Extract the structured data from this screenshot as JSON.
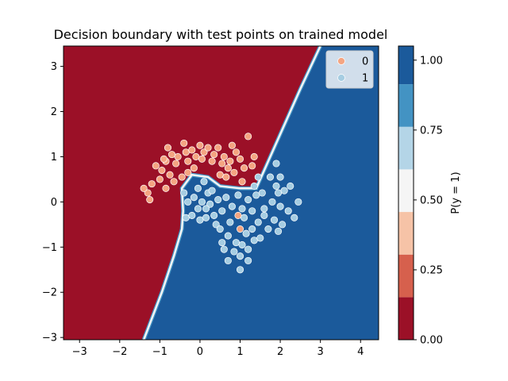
{
  "chart_data": {
    "type": "scatter",
    "title": "Decision boundary with test points on trained model",
    "xlim": [
      -3.4,
      4.45
    ],
    "ylim": [
      -3.05,
      3.45
    ],
    "xticks": [
      -3,
      -2,
      -1,
      0,
      1,
      2,
      3,
      4
    ],
    "yticks": [
      -3,
      -2,
      -1,
      0,
      1,
      2,
      3
    ],
    "tick_labels_x": [
      "−3",
      "−2",
      "−1",
      "0",
      "1",
      "2",
      "3",
      "4"
    ],
    "tick_labels_y": [
      "−3",
      "−2",
      "−1",
      "0",
      "1",
      "2",
      "3"
    ],
    "colorbar": {
      "label": "P(y = 1)",
      "levels": [
        0.0,
        0.125,
        0.25,
        0.375,
        0.5,
        0.625,
        0.75,
        0.875,
        1.0
      ],
      "tick_values": [
        0.0,
        0.25,
        0.5,
        0.75,
        1.0
      ],
      "tick_labels": [
        "0.00",
        "0.25",
        "0.50",
        "0.75",
        "1.00"
      ],
      "colors": [
        "#9b1027",
        "#d6604d",
        "#f6c3a7",
        "#f5f5f5",
        "#b4d5e7",
        "#4393c3",
        "#1b5a9b"
      ]
    },
    "region_colors": {
      "class0": "#9b1027",
      "class1": "#1b5a9b",
      "boundary": "#f5f5f5"
    },
    "boundary_path": [
      [
        3.0,
        3.45
      ],
      [
        2.5,
        2.5
      ],
      [
        2.0,
        1.5
      ],
      [
        1.65,
        0.8
      ],
      [
        1.4,
        0.3
      ],
      [
        1.0,
        0.3
      ],
      [
        0.5,
        0.35
      ],
      [
        0.2,
        0.55
      ],
      [
        -0.2,
        0.6
      ],
      [
        -0.45,
        0.3
      ],
      [
        -0.42,
        -0.2
      ],
      [
        -0.45,
        -0.6
      ],
      [
        -0.65,
        -1.2
      ],
      [
        -0.95,
        -2.0
      ],
      [
        -1.4,
        -3.05
      ]
    ],
    "legend": {
      "position": "top-right",
      "entries": [
        "0",
        "1"
      ]
    },
    "series": [
      {
        "name": "0",
        "color": "#f4a582",
        "points": [
          [
            -1.3,
            0.2
          ],
          [
            -1.2,
            0.4
          ],
          [
            -1.0,
            0.5
          ],
          [
            -0.95,
            0.7
          ],
          [
            -0.85,
            0.9
          ],
          [
            -0.8,
            1.2
          ],
          [
            -0.7,
            1.05
          ],
          [
            -0.6,
            0.85
          ],
          [
            -0.55,
            1.0
          ],
          [
            -0.4,
            1.3
          ],
          [
            -0.35,
            1.1
          ],
          [
            -0.3,
            0.9
          ],
          [
            -0.2,
            1.15
          ],
          [
            -0.1,
            1.0
          ],
          [
            0.0,
            1.25
          ],
          [
            0.05,
            0.95
          ],
          [
            0.1,
            1.1
          ],
          [
            0.2,
            1.2
          ],
          [
            0.3,
            0.9
          ],
          [
            0.35,
            1.05
          ],
          [
            0.45,
            1.2
          ],
          [
            0.55,
            0.85
          ],
          [
            0.6,
            1.0
          ],
          [
            0.7,
            0.75
          ],
          [
            0.75,
            0.9
          ],
          [
            0.85,
            0.65
          ],
          [
            0.9,
            1.1
          ],
          [
            1.0,
            0.95
          ],
          [
            1.1,
            0.75
          ],
          [
            1.2,
            1.45
          ],
          [
            1.3,
            0.8
          ],
          [
            1.35,
            1.0
          ],
          [
            -1.1,
            0.8
          ],
          [
            -0.9,
            0.95
          ],
          [
            -0.75,
            0.6
          ],
          [
            -0.65,
            0.45
          ],
          [
            -0.45,
            0.55
          ],
          [
            -0.3,
            0.65
          ],
          [
            -0.15,
            0.75
          ],
          [
            0.5,
            0.6
          ],
          [
            0.65,
            0.55
          ],
          [
            1.0,
            -0.6
          ],
          [
            0.95,
            -0.3
          ],
          [
            -1.4,
            0.3
          ],
          [
            -1.25,
            0.05
          ],
          [
            -0.85,
            0.3
          ],
          [
            0.8,
            1.25
          ],
          [
            1.05,
            0.45
          ]
        ]
      },
      {
        "name": "1",
        "color": "#a6cde2",
        "points": [
          [
            -0.4,
            0.2
          ],
          [
            -0.3,
            0.0
          ],
          [
            -0.35,
            -0.35
          ],
          [
            -0.2,
            -0.3
          ],
          [
            -0.15,
            0.1
          ],
          [
            -0.05,
            0.3
          ],
          [
            0.1,
            0.45
          ],
          [
            0.2,
            0.2
          ],
          [
            0.25,
            -0.05
          ],
          [
            0.35,
            -0.3
          ],
          [
            0.4,
            -0.5
          ],
          [
            0.5,
            -0.6
          ],
          [
            0.55,
            -0.9
          ],
          [
            0.6,
            -1.05
          ],
          [
            0.7,
            -0.75
          ],
          [
            0.75,
            -0.45
          ],
          [
            0.85,
            -1.1
          ],
          [
            0.9,
            -0.9
          ],
          [
            1.0,
            -1.2
          ],
          [
            1.05,
            -0.95
          ],
          [
            1.15,
            -0.7
          ],
          [
            1.2,
            -1.05
          ],
          [
            1.3,
            -0.6
          ],
          [
            1.35,
            -0.85
          ],
          [
            1.45,
            -0.45
          ],
          [
            1.5,
            -0.8
          ],
          [
            1.6,
            -0.3
          ],
          [
            1.7,
            -0.6
          ],
          [
            1.8,
            0.0
          ],
          [
            1.85,
            -0.4
          ],
          [
            1.9,
            0.35
          ],
          [
            1.95,
            0.2
          ],
          [
            2.0,
            -0.1
          ],
          [
            2.05,
            -0.5
          ],
          [
            2.1,
            0.25
          ],
          [
            2.2,
            -0.2
          ],
          [
            2.45,
            0.0
          ],
          [
            2.35,
            -0.35
          ],
          [
            1.75,
            0.55
          ],
          [
            1.9,
            0.85
          ],
          [
            1.55,
            0.2
          ],
          [
            1.4,
            0.15
          ],
          [
            1.3,
            -0.2
          ],
          [
            1.2,
            0.05
          ],
          [
            1.1,
            -0.35
          ],
          [
            1.05,
            -0.15
          ],
          [
            0.95,
            0.15
          ],
          [
            0.8,
            -0.1
          ],
          [
            0.65,
            0.1
          ],
          [
            0.55,
            -0.2
          ],
          [
            0.45,
            0.05
          ],
          [
            0.3,
            0.25
          ],
          [
            0.15,
            -0.15
          ],
          [
            0.05,
            0.0
          ],
          [
            -0.05,
            -0.15
          ],
          [
            0.0,
            -0.4
          ],
          [
            0.15,
            -0.35
          ],
          [
            0.7,
            -1.3
          ],
          [
            1.0,
            -1.5
          ],
          [
            1.2,
            -1.3
          ],
          [
            1.95,
            -0.65
          ],
          [
            2.25,
            0.35
          ],
          [
            2.0,
            0.55
          ],
          [
            1.6,
            -0.15
          ],
          [
            1.45,
            0.55
          ],
          [
            1.35,
            0.35
          ]
        ]
      }
    ]
  }
}
